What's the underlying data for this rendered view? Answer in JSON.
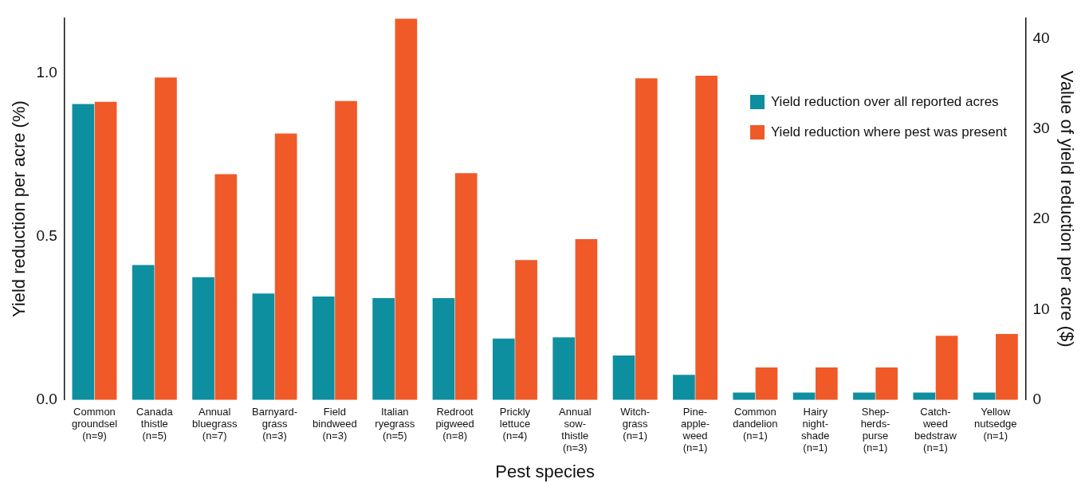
{
  "chart_data": {
    "type": "bar",
    "xlabel": "Pest species",
    "ylabel": "Yield reduction per acre (%)",
    "y2label": "Value of yield reduction per acre ($)",
    "categories": [
      "Common\ngroundsel\n(n=9)",
      "Canada\nthistle\n(n=5)",
      "Annual\nbluegrass\n(n=7)",
      "Barnyard-\ngrass\n(n=3)",
      "Field\nbindweed\n(n=3)",
      "Italian\nryegrass\n(n=5)",
      "Redroot\npigweed\n(n=8)",
      "Prickly\nlettuce\n(n=4)",
      "Annual\nsow-\nthistle\n(n=3)",
      "Witch-\ngrass\n(n=1)",
      "Pine-\napple-\nweed\n(n=1)",
      "Common\ndandelion\n(n=1)",
      "Hairy\nnight-\nshade\n(n=1)",
      "Shep-\nherds-\npurse\n(n=1)",
      "Catch-\nweed\nbedstraw\n(n=1)",
      "Yellow\nnutsedge\n(n=1)"
    ],
    "series": [
      {
        "name": "Yield reduction over all reported acres",
        "color": "#0e8f9f",
        "values": [
          0.906,
          0.413,
          0.376,
          0.326,
          0.317,
          0.312,
          0.312,
          0.188,
          0.192,
          0.136,
          0.077,
          0.023,
          0.023,
          0.023,
          0.023,
          0.023
        ]
      },
      {
        "name": "Yield reduction where pest was present",
        "color": "#f05a28",
        "axis": "y2",
        "values": [
          33.0,
          35.7,
          25.0,
          29.5,
          33.1,
          42.2,
          25.1,
          15.5,
          17.8,
          35.6,
          35.9,
          3.6,
          3.6,
          3.6,
          7.1,
          7.3
        ]
      }
    ],
    "ylim": [
      0,
      1.17
    ],
    "yticks": [
      {
        "value": 0,
        "label": "0.0"
      },
      {
        "value": 0.5,
        "label": "0.5"
      },
      {
        "value": 1,
        "label": "1.0"
      }
    ],
    "y2lim": [
      0,
      42.3
    ],
    "y2ticks": [
      0,
      10,
      20,
      30,
      40
    ],
    "grid": false,
    "legend": "top right"
  }
}
